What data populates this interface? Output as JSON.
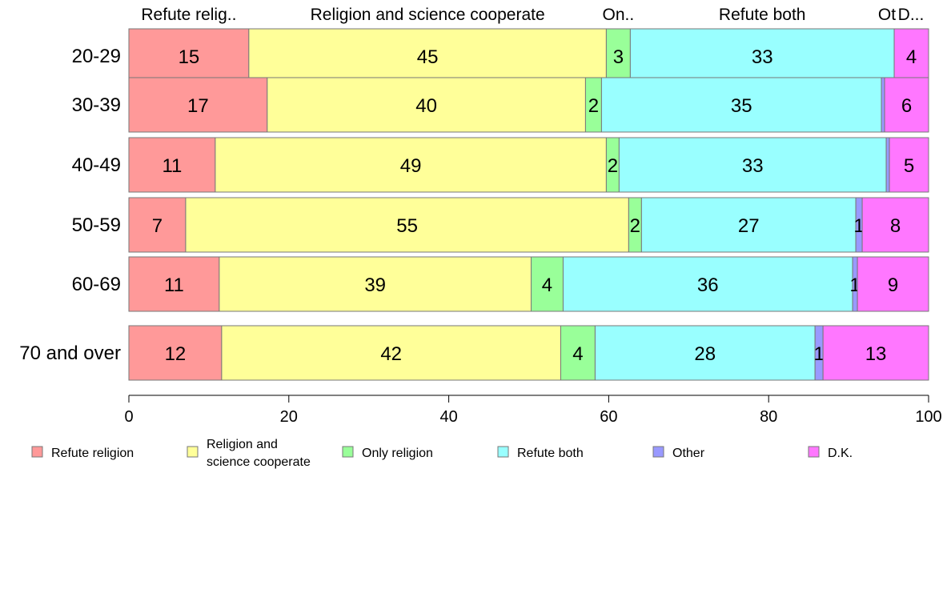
{
  "chart_data": {
    "type": "bar",
    "orientation": "horizontal",
    "stacked": true,
    "categories": [
      "20-29",
      "30-39",
      "40-49",
      "50-59",
      "60-69",
      "70 and over"
    ],
    "series": [
      {
        "name": "Refute religion",
        "color": "#ff9999",
        "values": [
          15,
          17.3,
          10.8,
          7.1,
          11.3,
          11.6
        ],
        "labels": [
          "15",
          "17",
          "11",
          "7",
          "11",
          "12"
        ]
      },
      {
        "name": "Religion and science cooperate",
        "color": "#ffff99",
        "values": [
          44.7,
          39.8,
          48.9,
          55.4,
          39.0,
          42.4
        ],
        "labels": [
          "45",
          "40",
          "49",
          "55",
          "39",
          "42"
        ]
      },
      {
        "name": "Only religion",
        "color": "#99ff99",
        "values": [
          3.0,
          2.0,
          1.6,
          1.6,
          4.0,
          4.3
        ],
        "labels": [
          "3",
          "2",
          "2",
          "2",
          "4",
          "4"
        ]
      },
      {
        "name": "Refute both",
        "color": "#99ffff",
        "values": [
          33.0,
          35.0,
          33.4,
          26.8,
          36.2,
          27.5
        ],
        "labels": [
          "33",
          "35",
          "33",
          "27",
          "36",
          "28"
        ]
      },
      {
        "name": "Other",
        "color": "#9999ff",
        "values": [
          0,
          0.4,
          0.4,
          0.8,
          0.6,
          1.0
        ],
        "labels": [
          "",
          "",
          "",
          "1",
          "1",
          "1"
        ]
      },
      {
        "name": "D.K.",
        "color": "#ff77ff",
        "values": [
          4.3,
          5.5,
          4.9,
          8.3,
          8.9,
          13.2
        ],
        "labels": [
          "4",
          "6",
          "5",
          "8",
          "9",
          "13"
        ]
      }
    ],
    "top_labels": [
      "Refute relig..",
      "Religion and science cooperate",
      "On..",
      "Refute both",
      "Ot",
      "D..."
    ],
    "xlim": [
      0,
      100
    ],
    "xticks": [
      "0",
      "20",
      "40",
      "60",
      "80",
      "100"
    ],
    "legend": {
      "position": "bottom",
      "items": [
        {
          "lines": [
            "Refute religion"
          ]
        },
        {
          "lines": [
            "Religion and",
            "science cooperate"
          ]
        },
        {
          "lines": [
            "Only religion"
          ]
        },
        {
          "lines": [
            "Refute both"
          ]
        },
        {
          "lines": [
            "Other"
          ]
        },
        {
          "lines": [
            "D.K."
          ]
        }
      ]
    },
    "grid": false
  }
}
